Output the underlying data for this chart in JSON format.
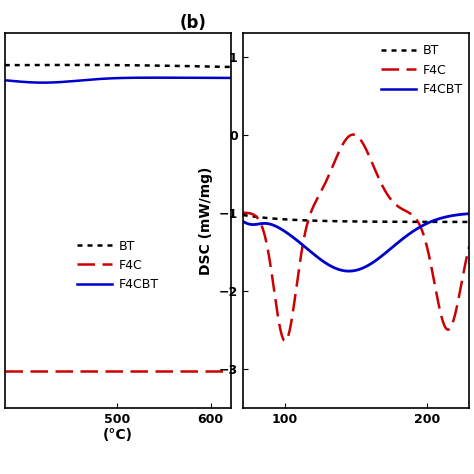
{
  "title_b": "(b)",
  "dsc_ylabel": "DSC (mW/mg)",
  "tga_xlim": [
    380,
    622
  ],
  "tga_ylim": [
    -3.6,
    0.5
  ],
  "dsc_xlim": [
    70,
    230
  ],
  "dsc_ylim": [
    -3.5,
    1.3
  ],
  "dsc_yticks": [
    1,
    0,
    -1,
    -2,
    -3
  ],
  "tga_xticks": [
    500,
    600
  ],
  "dsc_xticks": [
    100,
    200
  ],
  "legend_labels": [
    "BT",
    "F4C",
    "F4CBT"
  ],
  "bt_color": "#000000",
  "f4c_color": "#cc0000",
  "f4cbt_color": "#0000cc",
  "figsize": [
    4.74,
    4.74
  ],
  "dpi": 100
}
